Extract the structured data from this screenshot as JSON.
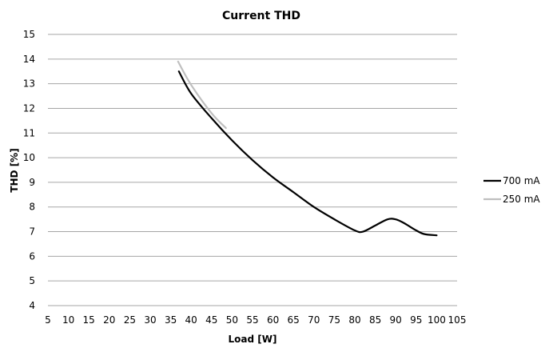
{
  "chart_data": {
    "type": "line",
    "title": "Current THD",
    "xlabel": "Load [W]",
    "ylabel": "THD [%]",
    "xlim": [
      5,
      105
    ],
    "ylim": [
      4,
      15
    ],
    "xticks": [
      "5",
      "10",
      "15",
      "20",
      "25",
      "30",
      "35",
      "40",
      "45",
      "50",
      "55",
      "60",
      "65",
      "70",
      "75",
      "80",
      "85",
      "90",
      "95",
      "100",
      "105"
    ],
    "yticks": [
      "4",
      "5",
      "6",
      "7",
      "8",
      "9",
      "10",
      "11",
      "12",
      "13",
      "14",
      "15"
    ],
    "grid": true,
    "legend_position": "right",
    "series": [
      {
        "name": "700 mA",
        "color": "#000000",
        "x": [
          37,
          40,
          45,
          50,
          55,
          60,
          65,
          70,
          75,
          80,
          82,
          85,
          88,
          90,
          92,
          95,
          97,
          100
        ],
        "y": [
          13.5,
          12.6,
          11.6,
          10.7,
          9.9,
          9.2,
          8.6,
          8.0,
          7.5,
          7.05,
          7.0,
          7.25,
          7.5,
          7.5,
          7.35,
          7.05,
          6.9,
          6.85
        ]
      },
      {
        "name": "250 mA",
        "color": "#bfbfbf",
        "x": [
          36.8,
          40,
          45,
          48.5
        ],
        "y": [
          13.9,
          12.95,
          11.8,
          11.2
        ]
      }
    ]
  }
}
